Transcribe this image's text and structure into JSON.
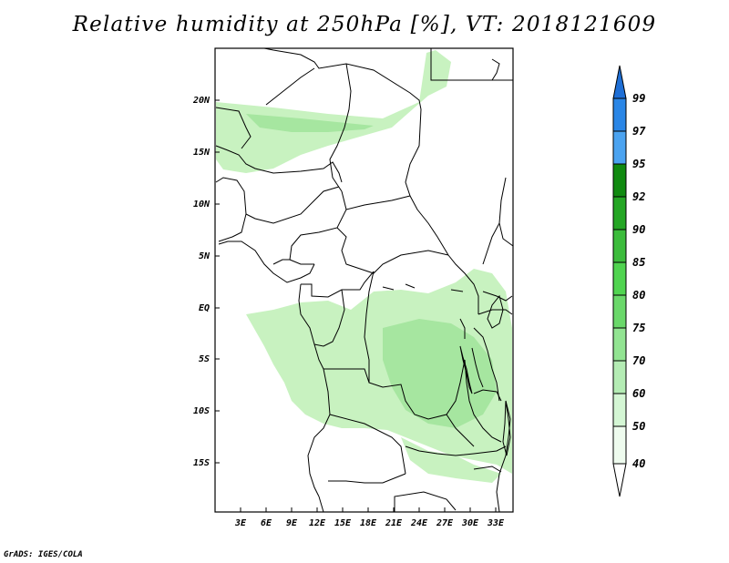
{
  "title": "Relative humidity at 250hPa [%], VT: 2018121609",
  "footer": "GrADS: IGES/COLA",
  "map": {
    "lat_labels": [
      "20N",
      "15N",
      "10N",
      "5N",
      "EQ",
      "5S",
      "10S",
      "15S"
    ],
    "lon_labels": [
      "3E",
      "6E",
      "9E",
      "12E",
      "15E",
      "18E",
      "21E",
      "24E",
      "27E",
      "30E",
      "33E"
    ]
  },
  "colorbar": {
    "labels": [
      "99",
      "97",
      "95",
      "92",
      "90",
      "85",
      "80",
      "75",
      "70",
      "60",
      "50",
      "40"
    ],
    "colors": [
      "#1e6fd6",
      "#2a86e6",
      "#4ba3f0",
      "#108a10",
      "#24a624",
      "#3cbc3c",
      "#50d450",
      "#6ad86a",
      "#92e492",
      "#b4ecb4",
      "#d4f6d4",
      "#eefbee"
    ]
  },
  "colors": {
    "humidity_fill": "#c8f2c0",
    "humidity_fill_dense": "#a6e6a0",
    "boundary": "#000000"
  }
}
